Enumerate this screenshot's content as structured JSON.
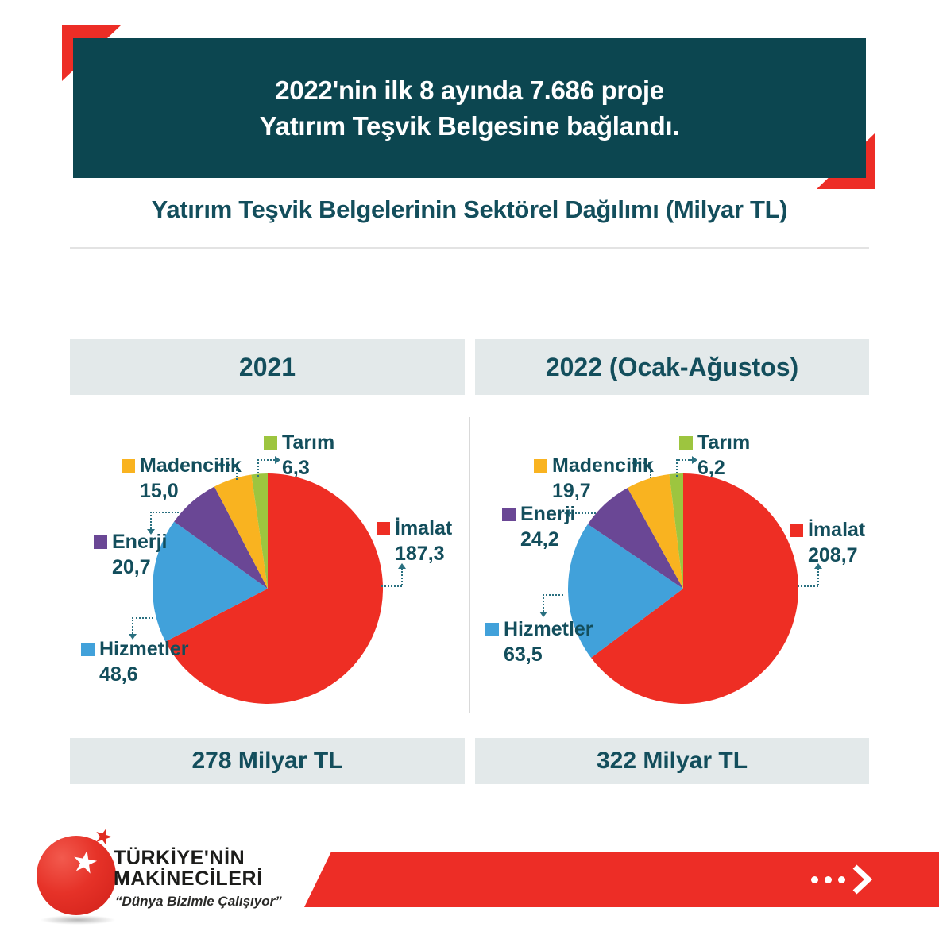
{
  "banner": {
    "title_line1": "2022'nin ilk 8 ayında 7.686 proje",
    "title_line2": "Yatırım Teşvik Belgesine bağlandı."
  },
  "subtitle": "Yatırım Teşvik Belgelerinin Sektörel Dağılımı (Milyar TL)",
  "chart_data": [
    {
      "type": "pie",
      "title": "2021",
      "total_label": "278 Milyar TL",
      "unit": "Milyar TL",
      "legend_position": "around",
      "slices": [
        {
          "label": "İmalat",
          "value": 187.3,
          "display": "187,3",
          "color": "#ee2e24"
        },
        {
          "label": "Hizmetler",
          "value": 48.6,
          "display": "48,6",
          "color": "#41a1da"
        },
        {
          "label": "Enerji",
          "value": 20.7,
          "display": "20,7",
          "color": "#6a4795"
        },
        {
          "label": "Madencilik",
          "value": 15.0,
          "display": "15,0",
          "color": "#f9b320"
        },
        {
          "label": "Tarım",
          "value": 6.3,
          "display": "6,3",
          "color": "#9dc53f"
        }
      ]
    },
    {
      "type": "pie",
      "title": "2022 (Ocak-Ağustos)",
      "total_label": "322 Milyar TL",
      "unit": "Milyar TL",
      "legend_position": "around",
      "slices": [
        {
          "label": "İmalat",
          "value": 208.7,
          "display": "208,7",
          "color": "#ee2e24"
        },
        {
          "label": "Hizmetler",
          "value": 63.5,
          "display": "63,5",
          "color": "#41a1da"
        },
        {
          "label": "Enerji",
          "value": 24.2,
          "display": "24,2",
          "color": "#6a4795"
        },
        {
          "label": "Madencilik",
          "value": 19.7,
          "display": "19,7",
          "color": "#f9b320"
        },
        {
          "label": "Tarım",
          "value": 6.2,
          "display": "6,2",
          "color": "#9dc53f"
        }
      ]
    }
  ],
  "footer": {
    "brand_line1": "TÜRKİYE'NİN",
    "brand_line2": "MAKİNECİLERİ",
    "tagline": "“Dünya Bizimle Çalışıyor”"
  },
  "icons": {
    "star": "★"
  },
  "colors": {
    "banner_bg": "#0c4650",
    "accent_red": "#ed2d26",
    "text_teal": "#134e5c",
    "panel_bg": "#e3e9ea",
    "connector": "#2a7080"
  }
}
